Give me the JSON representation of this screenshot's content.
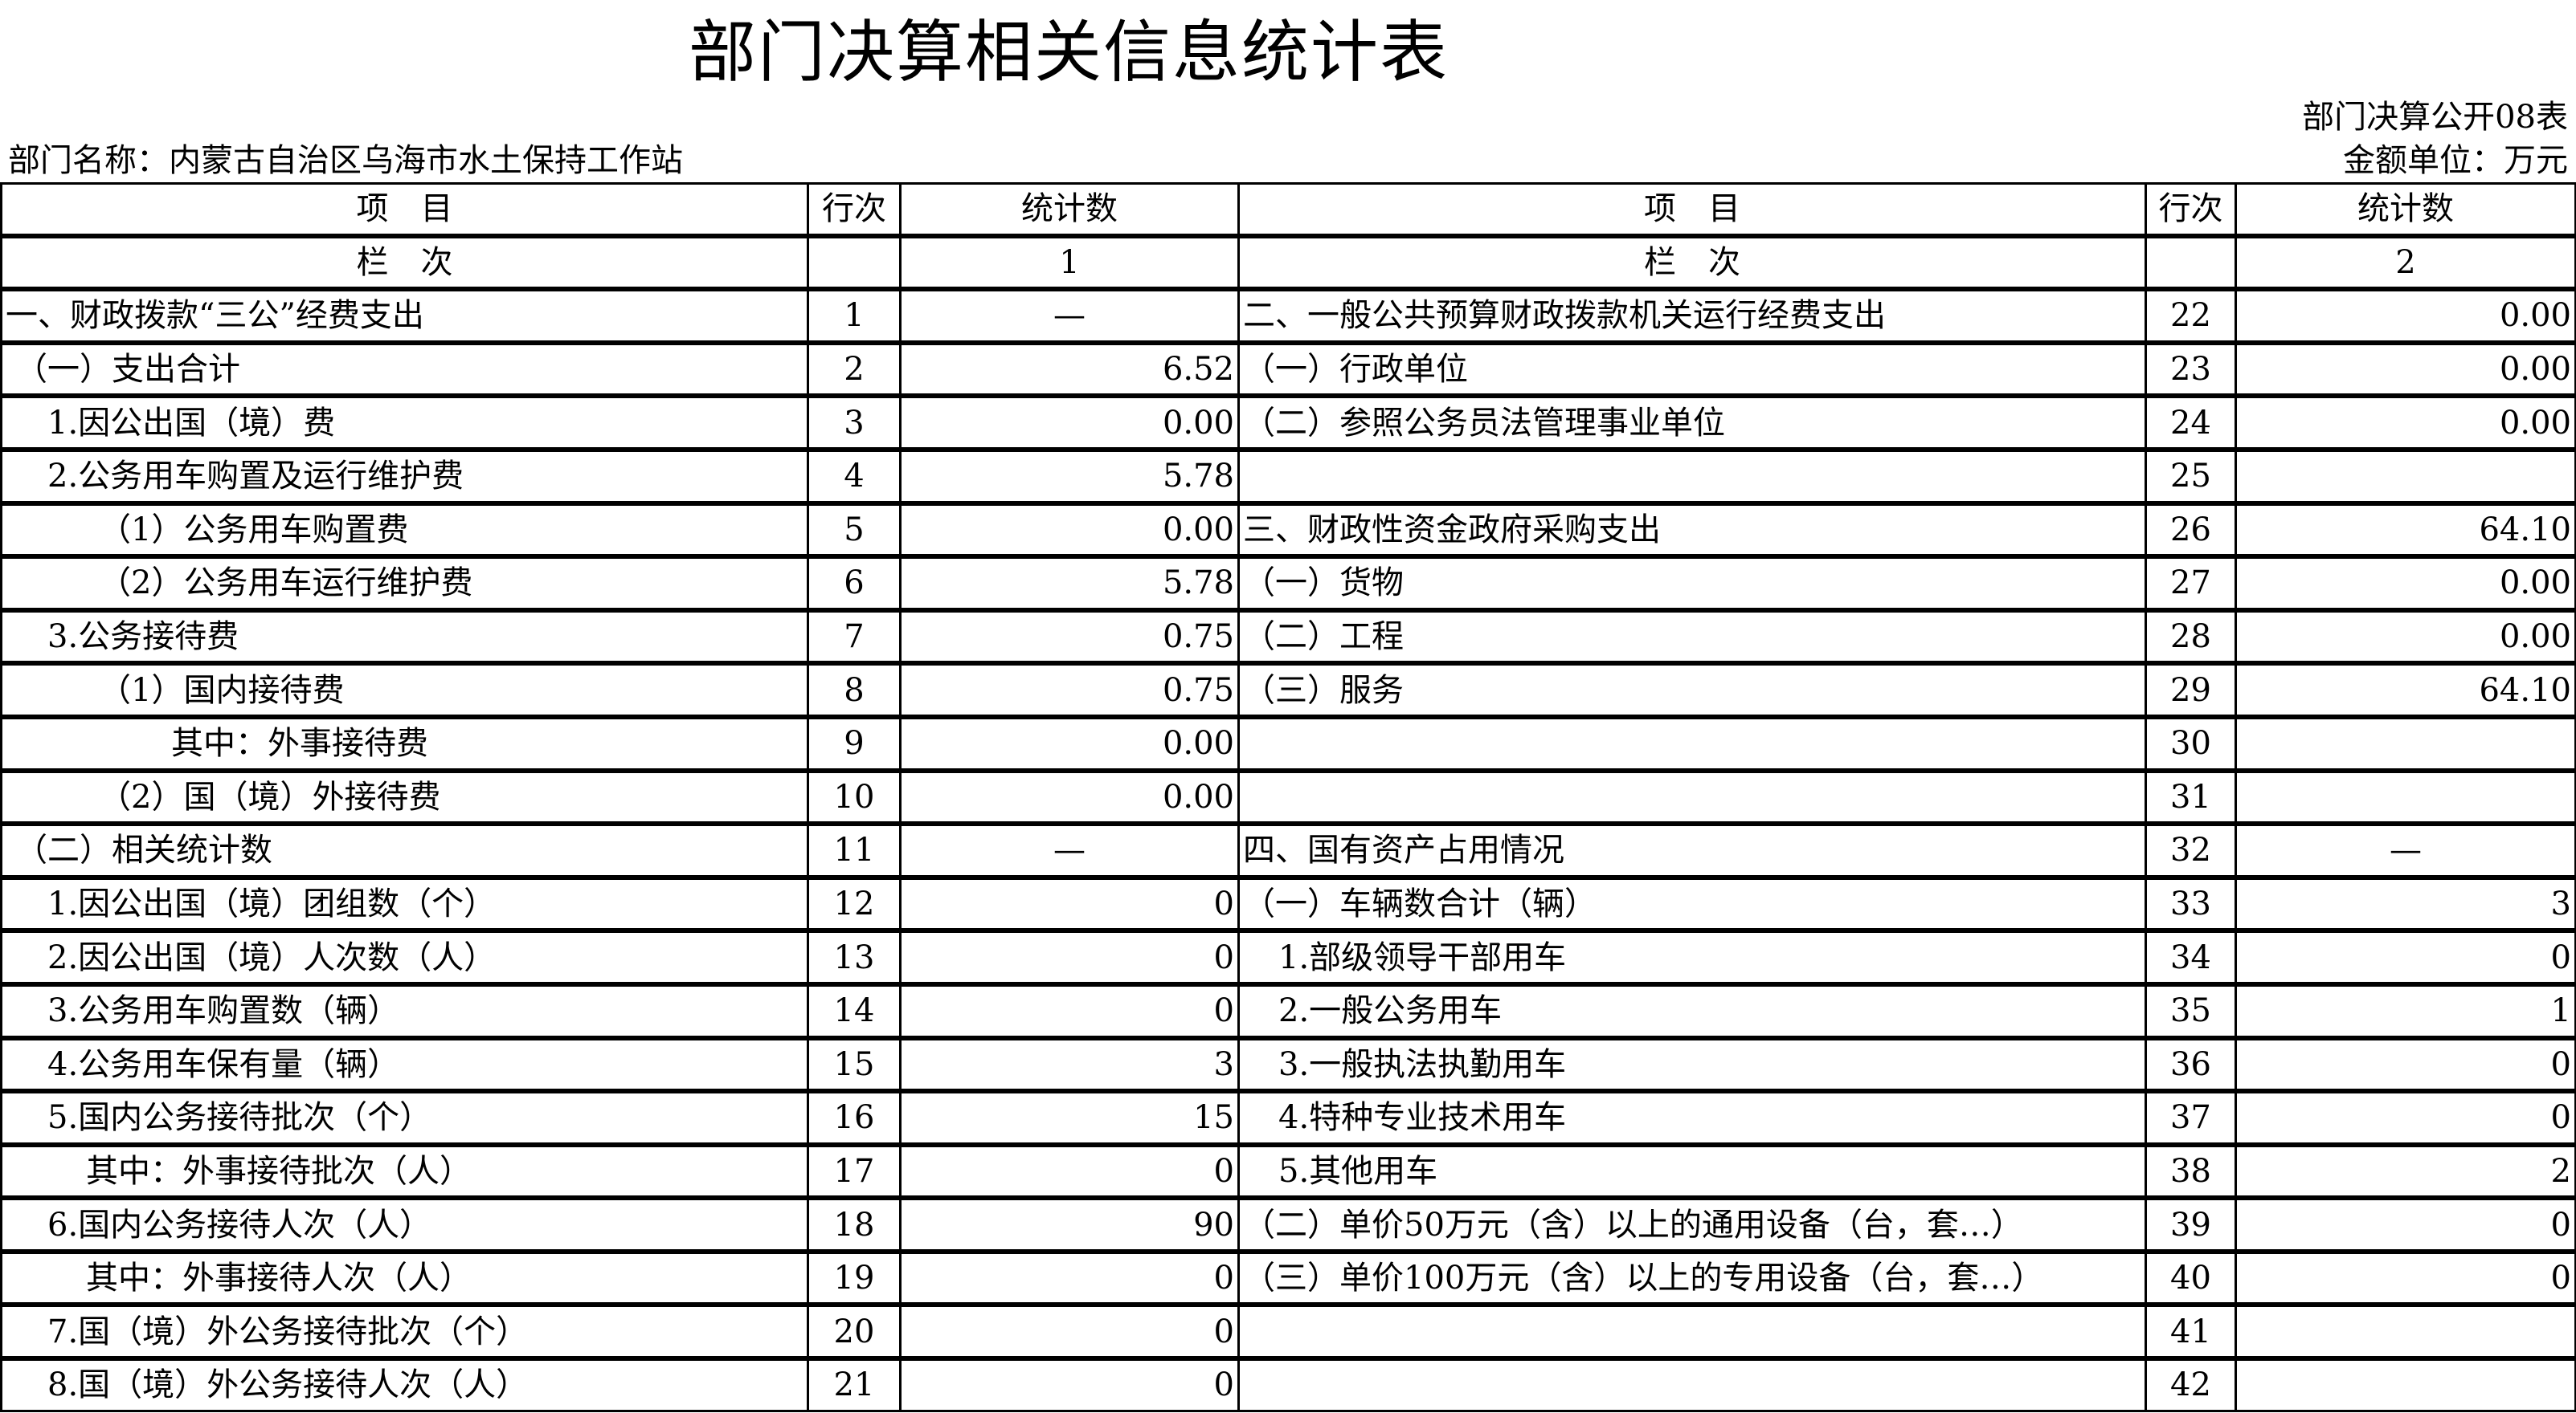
{
  "title": "部门决算相关信息统计表",
  "table_no": "部门决算公开08表",
  "department": "部门名称：内蒙古自治区乌海市水土保持工作站",
  "unit": "金额单位：万元",
  "header": {
    "item": "项　目",
    "line_no": "行次",
    "stat": "统计数",
    "column_label": "栏　次",
    "col_left": "1",
    "col_right": "2"
  },
  "rows": [
    {
      "left_item": "一、财政拨款“三公”经费支出",
      "left_no": "1",
      "left_val": "—",
      "right_item": "二、一般公共预算财政拨款机关运行经费支出",
      "right_no": "22",
      "right_val": "0.00"
    },
    {
      "left_item": "（一）支出合计",
      "left_no": "2",
      "left_val": "6.52",
      "right_item": "（一）行政单位",
      "right_no": "23",
      "right_val": "0.00"
    },
    {
      "left_item": "1.因公出国（境）费",
      "left_no": "3",
      "left_val": "0.00",
      "right_item": "（二）参照公务员法管理事业单位",
      "right_no": "24",
      "right_val": "0.00"
    },
    {
      "left_item": "2.公务用车购置及运行维护费",
      "left_no": "4",
      "left_val": "5.78",
      "right_item": "",
      "right_no": "25",
      "right_val": ""
    },
    {
      "left_item": "（1）公务用车购置费",
      "left_no": "5",
      "left_val": "0.00",
      "right_item": "三、财政性资金政府采购支出",
      "right_no": "26",
      "right_val": "64.10"
    },
    {
      "left_item": "（2）公务用车运行维护费",
      "left_no": "6",
      "left_val": "5.78",
      "right_item": "（一）货物",
      "right_no": "27",
      "right_val": "0.00"
    },
    {
      "left_item": "3.公务接待费",
      "left_no": "7",
      "left_val": "0.75",
      "right_item": "（二）工程",
      "right_no": "28",
      "right_val": "0.00"
    },
    {
      "left_item": "（1）国内接待费",
      "left_no": "8",
      "left_val": "0.75",
      "right_item": "（三）服务",
      "right_no": "29",
      "right_val": "64.10"
    },
    {
      "left_item": "其中：外事接待费",
      "left_no": "9",
      "left_val": "0.00",
      "right_item": "",
      "right_no": "30",
      "right_val": ""
    },
    {
      "left_item": "（2）国（境）外接待费",
      "left_no": "10",
      "left_val": "0.00",
      "right_item": "",
      "right_no": "31",
      "right_val": ""
    },
    {
      "left_item": "（二）相关统计数",
      "left_no": "11",
      "left_val": "—",
      "right_item": "四、国有资产占用情况",
      "right_no": "32",
      "right_val": "—"
    },
    {
      "left_item": "1.因公出国（境）团组数（个）",
      "left_no": "12",
      "left_val": "0",
      "right_item": "（一）车辆数合计（辆）",
      "right_no": "33",
      "right_val": "3"
    },
    {
      "left_item": "2.因公出国（境）人次数（人）",
      "left_no": "13",
      "left_val": "0",
      "right_item": "1.部级领导干部用车",
      "right_no": "34",
      "right_val": "0"
    },
    {
      "left_item": "3.公务用车购置数（辆）",
      "left_no": "14",
      "left_val": "0",
      "right_item": "2.一般公务用车",
      "right_no": "35",
      "right_val": "1"
    },
    {
      "left_item": "4.公务用车保有量（辆）",
      "left_no": "15",
      "left_val": "3",
      "right_item": "3.一般执法执勤用车",
      "right_no": "36",
      "right_val": "0"
    },
    {
      "left_item": "5.国内公务接待批次（个）",
      "left_no": "16",
      "left_val": "15",
      "right_item": "4.特种专业技术用车",
      "right_no": "37",
      "right_val": "0"
    },
    {
      "left_item": "其中：外事接待批次（人）",
      "left_no": "17",
      "left_val": "0",
      "right_item": "5.其他用车",
      "right_no": "38",
      "right_val": "2"
    },
    {
      "left_item": "6.国内公务接待人次（人）",
      "left_no": "18",
      "left_val": "90",
      "right_item": "（二）单价50万元（含）以上的通用设备（台，套…）",
      "right_no": "39",
      "right_val": "0"
    },
    {
      "left_item": "其中：外事接待人次（人）",
      "left_no": "19",
      "left_val": "0",
      "right_item": "（三）单价100万元（含）以上的专用设备（台，套…）",
      "right_no": "40",
      "right_val": "0"
    },
    {
      "left_item": "7.国（境）外公务接待批次（个）",
      "left_no": "20",
      "left_val": "0",
      "right_item": "",
      "right_no": "41",
      "right_val": ""
    },
    {
      "left_item": "8.国（境）外公务接待人次（人）",
      "left_no": "21",
      "left_val": "0",
      "right_item": "",
      "right_no": "42",
      "right_val": ""
    }
  ]
}
